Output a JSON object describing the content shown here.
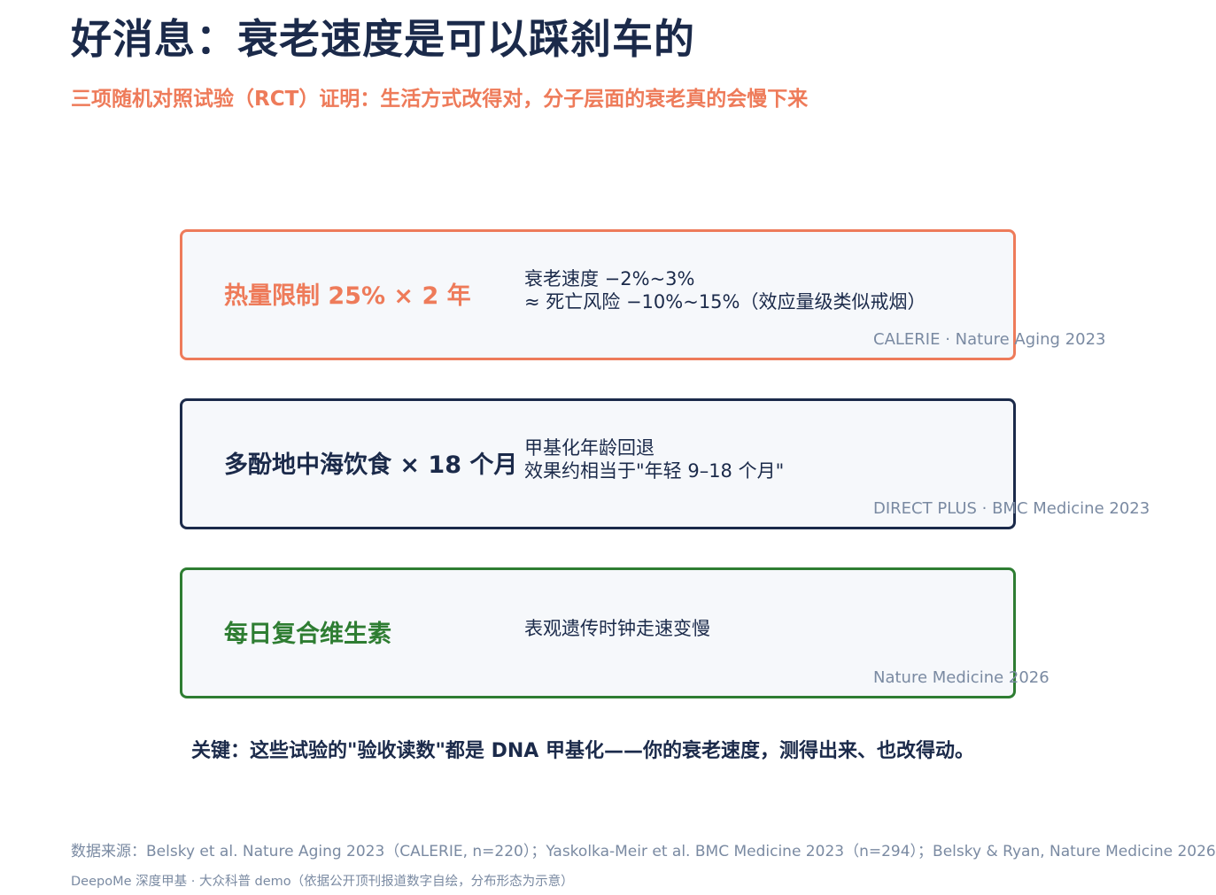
{
  "title": "好消息：衰老速度是可以踩刹车的",
  "subtitle": "三项随机对照试验（RCT）证明：生活方式改得对，分子层面的衰老真的会慢下来",
  "cards": [
    {
      "label": "热量限制 25% × 2 年",
      "effect_line1": "衰老速度 −2%~3%",
      "effect_line2": "≈ 死亡风险 −10%~15%（效应量级类似戒烟）",
      "source": "CALERIE · Nature Aging 2023",
      "color": "#ee7b5a"
    },
    {
      "label": "多酚地中海饮食 × 18 个月",
      "effect_line1": "甲基化年龄回退",
      "effect_line2": "效果约相当于\"年轻 9–18 个月\"",
      "source": "DIRECT PLUS · BMC Medicine 2023",
      "color": "#1b2a4a"
    },
    {
      "label": "每日复合维生素",
      "effect_line1": "表观遗传时钟走速变慢",
      "source": "Nature Medicine 2026",
      "color": "#2e7d32"
    }
  ],
  "key_note": "关键：这些试验的\"验收读数\"都是 DNA 甲基化——你的衰老速度，测得出来、也改得动。",
  "footer": {
    "source": "数据来源：Belsky et al. Nature Aging 2023（CALERIE, n=220）；Yaskolka-Meir et al. BMC Medicine 2023（n=294）；Belsky & Ryan, Nature Medicine 2026",
    "credit": "DeepoMe 深度甲基 · 大众科普 demo（依据公开顶刊报道数字自绘，分布形态为示意）"
  },
  "colors": {
    "navy": "#1b2a4a",
    "accent_orange": "#ee7b5a",
    "accent_green": "#2e7d32",
    "muted": "#7a8aa2",
    "card_bg": "#f6f8fb"
  }
}
